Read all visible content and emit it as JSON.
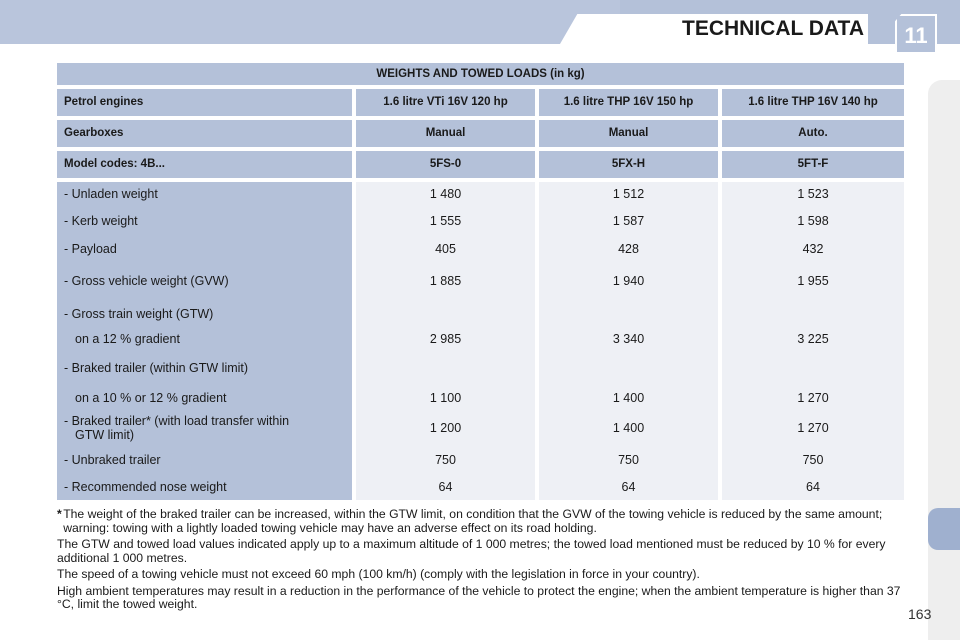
{
  "header": {
    "chapter_number": "11",
    "chapter_title": "TECHNICAL DATA"
  },
  "table": {
    "title": "WEIGHTS AND TOWED LOADS (in kg)",
    "header_rows": [
      {
        "label": "Petrol engines",
        "values": [
          "1.6 litre VTi 16V 120 hp",
          "1.6 litre THP 16V 150 hp",
          "1.6 litre THP 16V 140 hp"
        ]
      },
      {
        "label": "Gearboxes",
        "values": [
          "Manual",
          "Manual",
          "Auto."
        ]
      },
      {
        "label": "Model codes: 4B...",
        "values": [
          "5FS-0",
          "5FX-H",
          "5FT-F"
        ]
      }
    ],
    "rows": {
      "unladen": {
        "label": "- Unladen weight",
        "values": [
          "1 480",
          "1 512",
          "1 523"
        ]
      },
      "kerb": {
        "label": "- Kerb weight",
        "values": [
          "1 555",
          "1 587",
          "1 598"
        ]
      },
      "payload": {
        "label": "- Payload",
        "values": [
          "405",
          "428",
          "432"
        ]
      },
      "gvw": {
        "label": "- Gross vehicle weight (GVW)",
        "values": [
          "1 885",
          "1 940",
          "1 955"
        ]
      },
      "gtw_label": "- Gross train weight (GTW)",
      "gtw": {
        "label": "on a 12 % gradient",
        "values": [
          "2 985",
          "3 340",
          "3 225"
        ]
      },
      "braked_label": "- Braked trailer (within GTW limit)",
      "braked": {
        "label": "on a 10 % or 12 % gradient",
        "values": [
          "1 100",
          "1 400",
          "1 270"
        ]
      },
      "braked_transfer": {
        "label_line1": "- Braked trailer* (with load transfer within",
        "label_line2": "GTW limit)",
        "values": [
          "1 200",
          "1 400",
          "1 270"
        ]
      },
      "unbraked": {
        "label": "- Unbraked trailer",
        "values": [
          "750",
          "750",
          "750"
        ]
      },
      "nose": {
        "label": "- Recommended nose weight",
        "values": [
          "64",
          "64",
          "64"
        ]
      }
    }
  },
  "notes": {
    "star": "*",
    "footnote": "The weight of the braked trailer can be increased, within the GTW limit, on condition that the GVW of the towing vehicle is reduced by the same amount; warning: towing with a lightly loaded towing vehicle may have an adverse effect on its road holding.",
    "altitude": "The GTW and towed load values indicated apply up to a maximum altitude of 1 000 metres; the towed load mentioned must be reduced by 10 % for every additional 1 000 metres.",
    "speed": "The speed of a towing vehicle must not exceed 60 mph (100 km/h) (comply with the legislation in force in your country).",
    "temperature": "High ambient temperatures may result in a reduction in the performance of the vehicle to protect the engine; when the ambient temperature is higher than 37 °C, limit the towed weight."
  },
  "page_number": "163",
  "colors": {
    "band": "#b4c1d9",
    "value_bg": "#eef0f5"
  }
}
